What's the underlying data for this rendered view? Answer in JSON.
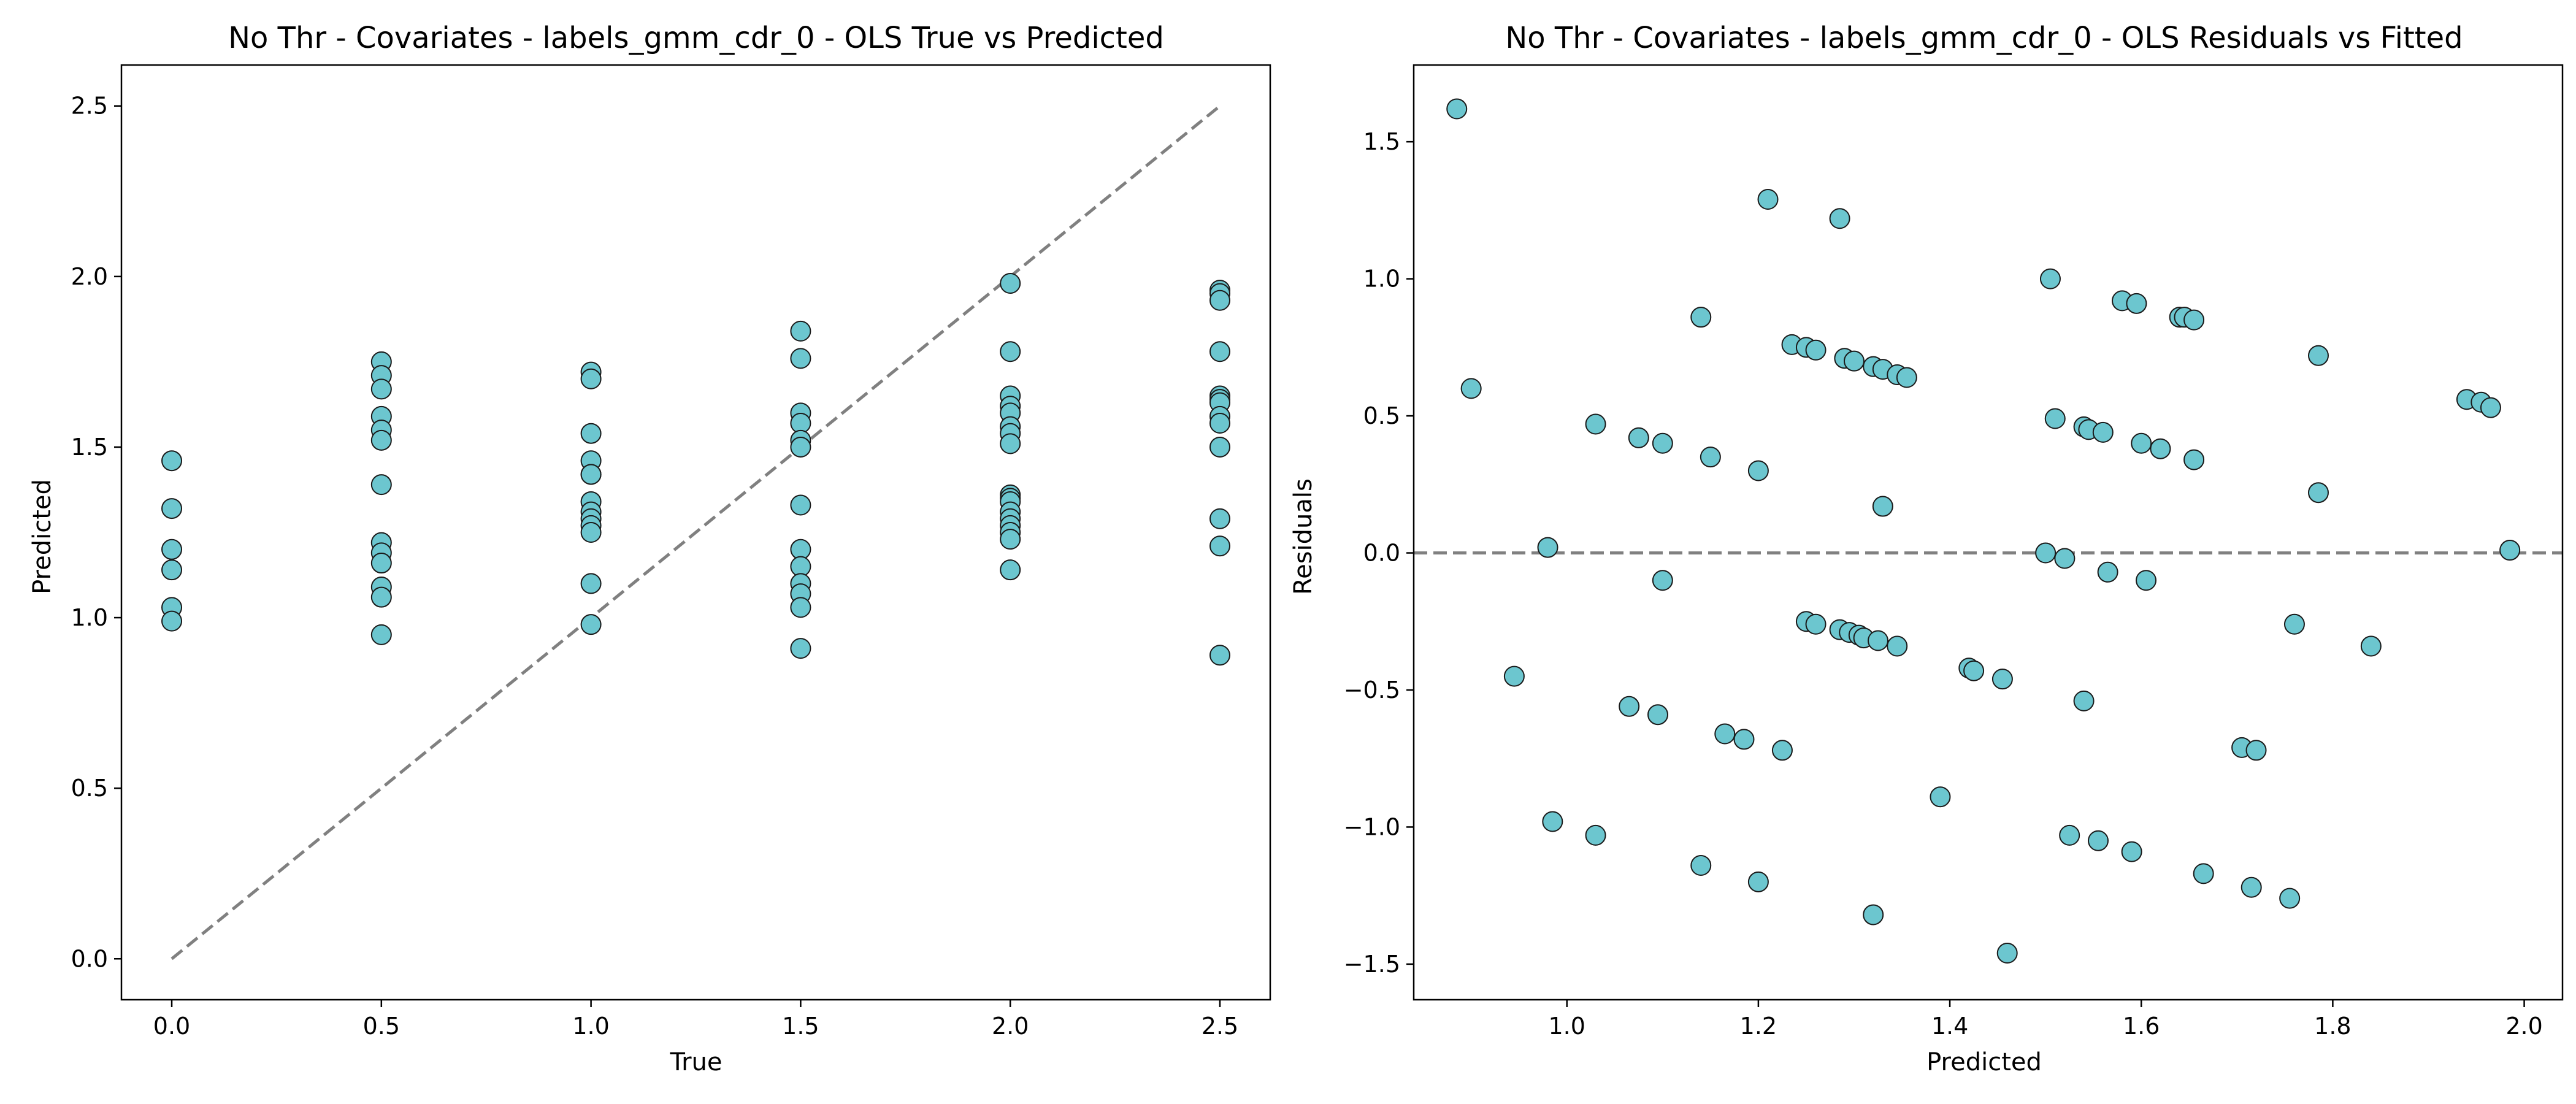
{
  "chart_data": [
    {
      "type": "scatter",
      "title": "No Thr - Covariates - labels_gmm_cdr_0 - OLS True vs Predicted",
      "xlabel": "True",
      "ylabel": "Predicted",
      "xlim": [
        -0.12,
        2.62
      ],
      "ylim": [
        -0.12,
        2.62
      ],
      "xticks": [
        0.0,
        0.5,
        1.0,
        1.5,
        2.0,
        2.5
      ],
      "yticks": [
        0.0,
        0.5,
        1.0,
        1.5,
        2.0,
        2.5
      ],
      "xtick_labels": [
        "0.0",
        "0.5",
        "1.0",
        "1.5",
        "2.0",
        "2.5"
      ],
      "ytick_labels": [
        "0.0",
        "0.5",
        "1.0",
        "1.5",
        "2.0",
        "2.5"
      ],
      "grid": false,
      "reference_line": {
        "kind": "diagonal",
        "from": [
          0,
          0
        ],
        "to": [
          2.5,
          2.5
        ],
        "style": "dashed",
        "color": "#808080"
      },
      "marker_color": "#6cc6cf",
      "marker_edge": "#1a1a1a",
      "points": [
        [
          0.0,
          1.46
        ],
        [
          0.0,
          1.32
        ],
        [
          0.0,
          1.2
        ],
        [
          0.0,
          1.14
        ],
        [
          0.0,
          1.03
        ],
        [
          0.0,
          0.99
        ],
        [
          0.5,
          1.75
        ],
        [
          0.5,
          1.71
        ],
        [
          0.5,
          1.67
        ],
        [
          0.5,
          1.59
        ],
        [
          0.5,
          1.55
        ],
        [
          0.5,
          1.52
        ],
        [
          0.5,
          1.39
        ],
        [
          0.5,
          1.22
        ],
        [
          0.5,
          1.19
        ],
        [
          0.5,
          1.16
        ],
        [
          0.5,
          1.09
        ],
        [
          0.5,
          1.06
        ],
        [
          0.5,
          0.95
        ],
        [
          1.0,
          1.72
        ],
        [
          1.0,
          1.7
        ],
        [
          1.0,
          1.54
        ],
        [
          1.0,
          1.46
        ],
        [
          1.0,
          1.42
        ],
        [
          1.0,
          1.42
        ],
        [
          1.0,
          1.34
        ],
        [
          1.0,
          1.31
        ],
        [
          1.0,
          1.29
        ],
        [
          1.0,
          1.27
        ],
        [
          1.0,
          1.25
        ],
        [
          1.0,
          1.1
        ],
        [
          1.0,
          0.98
        ],
        [
          1.5,
          1.84
        ],
        [
          1.5,
          1.76
        ],
        [
          1.5,
          1.6
        ],
        [
          1.5,
          1.57
        ],
        [
          1.5,
          1.52
        ],
        [
          1.5,
          1.5
        ],
        [
          1.5,
          1.33
        ],
        [
          1.5,
          1.2
        ],
        [
          1.5,
          1.15
        ],
        [
          1.5,
          1.1
        ],
        [
          1.5,
          1.07
        ],
        [
          1.5,
          1.03
        ],
        [
          1.5,
          0.91
        ],
        [
          2.0,
          1.98
        ],
        [
          2.0,
          1.78
        ],
        [
          2.0,
          1.65
        ],
        [
          2.0,
          1.62
        ],
        [
          2.0,
          1.6
        ],
        [
          2.0,
          1.56
        ],
        [
          2.0,
          1.54
        ],
        [
          2.0,
          1.51
        ],
        [
          2.0,
          1.36
        ],
        [
          2.0,
          1.35
        ],
        [
          2.0,
          1.34
        ],
        [
          2.0,
          1.31
        ],
        [
          2.0,
          1.29
        ],
        [
          2.0,
          1.27
        ],
        [
          2.0,
          1.25
        ],
        [
          2.0,
          1.23
        ],
        [
          2.0,
          1.14
        ],
        [
          2.5,
          1.96
        ],
        [
          2.5,
          1.95
        ],
        [
          2.5,
          1.93
        ],
        [
          2.5,
          1.78
        ],
        [
          2.5,
          1.65
        ],
        [
          2.5,
          1.64
        ],
        [
          2.5,
          1.63
        ],
        [
          2.5,
          1.59
        ],
        [
          2.5,
          1.57
        ],
        [
          2.5,
          1.5
        ],
        [
          2.5,
          1.29
        ],
        [
          2.5,
          1.21
        ],
        [
          2.5,
          0.89
        ]
      ]
    },
    {
      "type": "scatter",
      "title": "No Thr - Covariates - labels_gmm_cdr_0 - OLS Residuals vs Fitted",
      "xlabel": "Predicted",
      "ylabel": "Residuals",
      "xlim": [
        0.84,
        2.04
      ],
      "ylim": [
        -1.63,
        1.78
      ],
      "xticks": [
        1.0,
        1.2,
        1.4,
        1.6,
        1.8,
        2.0
      ],
      "yticks": [
        -1.5,
        -1.0,
        -0.5,
        0.0,
        0.5,
        1.0,
        1.5
      ],
      "xtick_labels": [
        "1.0",
        "1.2",
        "1.4",
        "1.6",
        "1.8",
        "2.0"
      ],
      "ytick_labels": [
        "−1.5",
        "−1.0",
        "−0.5",
        "0.0",
        "0.5",
        "1.0",
        "1.5"
      ],
      "grid": false,
      "reference_line": {
        "kind": "horizontal",
        "y": 0.0,
        "style": "dashed",
        "color": "#808080"
      },
      "marker_color": "#6cc6cf",
      "marker_edge": "#1a1a1a",
      "points": [
        [
          0.885,
          1.62
        ],
        [
          0.9,
          0.6
        ],
        [
          0.945,
          -0.45
        ],
        [
          0.98,
          0.02
        ],
        [
          0.985,
          -0.98
        ],
        [
          1.03,
          0.47
        ],
        [
          1.03,
          -1.03
        ],
        [
          1.065,
          -0.56
        ],
        [
          1.075,
          0.42
        ],
        [
          1.095,
          -0.59
        ],
        [
          1.1,
          -0.1
        ],
        [
          1.1,
          0.4
        ],
        [
          1.14,
          0.86
        ],
        [
          1.14,
          -1.14
        ],
        [
          1.15,
          0.35
        ],
        [
          1.165,
          -0.66
        ],
        [
          1.185,
          -0.68
        ],
        [
          1.2,
          0.3
        ],
        [
          1.2,
          -1.2
        ],
        [
          1.21,
          1.29
        ],
        [
          1.225,
          -0.72
        ],
        [
          1.235,
          0.76
        ],
        [
          1.25,
          0.75
        ],
        [
          1.25,
          -0.25
        ],
        [
          1.26,
          0.74
        ],
        [
          1.26,
          -0.26
        ],
        [
          1.285,
          1.22
        ],
        [
          1.285,
          -0.28
        ],
        [
          1.29,
          0.71
        ],
        [
          1.295,
          -0.29
        ],
        [
          1.3,
          0.7
        ],
        [
          1.305,
          -0.3
        ],
        [
          1.31,
          -0.31
        ],
        [
          1.32,
          0.68
        ],
        [
          1.32,
          -1.32
        ],
        [
          1.325,
          -0.32
        ],
        [
          1.33,
          0.17
        ],
        [
          1.33,
          0.67
        ],
        [
          1.345,
          -0.34
        ],
        [
          1.345,
          0.65
        ],
        [
          1.355,
          0.64
        ],
        [
          1.39,
          -0.89
        ],
        [
          1.42,
          -0.42
        ],
        [
          1.425,
          -0.43
        ],
        [
          1.455,
          -0.46
        ],
        [
          1.46,
          -1.46
        ],
        [
          1.5,
          0.0
        ],
        [
          1.505,
          1.0
        ],
        [
          1.51,
          0.49
        ],
        [
          1.52,
          -0.02
        ],
        [
          1.525,
          -1.03
        ],
        [
          1.54,
          0.46
        ],
        [
          1.54,
          -0.54
        ],
        [
          1.545,
          0.45
        ],
        [
          1.555,
          -1.05
        ],
        [
          1.56,
          0.44
        ],
        [
          1.565,
          -0.07
        ],
        [
          1.58,
          0.92
        ],
        [
          1.59,
          -1.09
        ],
        [
          1.595,
          0.91
        ],
        [
          1.6,
          0.4
        ],
        [
          1.605,
          -0.1
        ],
        [
          1.62,
          0.38
        ],
        [
          1.64,
          0.86
        ],
        [
          1.645,
          0.86
        ],
        [
          1.655,
          0.85
        ],
        [
          1.655,
          0.34
        ],
        [
          1.665,
          -1.17
        ],
        [
          1.705,
          -0.71
        ],
        [
          1.715,
          -1.22
        ],
        [
          1.72,
          -0.72
        ],
        [
          1.755,
          -1.26
        ],
        [
          1.76,
          -0.26
        ],
        [
          1.785,
          0.22
        ],
        [
          1.785,
          0.72
        ],
        [
          1.84,
          -0.34
        ],
        [
          1.94,
          0.56
        ],
        [
          1.955,
          0.55
        ],
        [
          1.965,
          0.53
        ],
        [
          1.985,
          0.01
        ]
      ]
    }
  ]
}
